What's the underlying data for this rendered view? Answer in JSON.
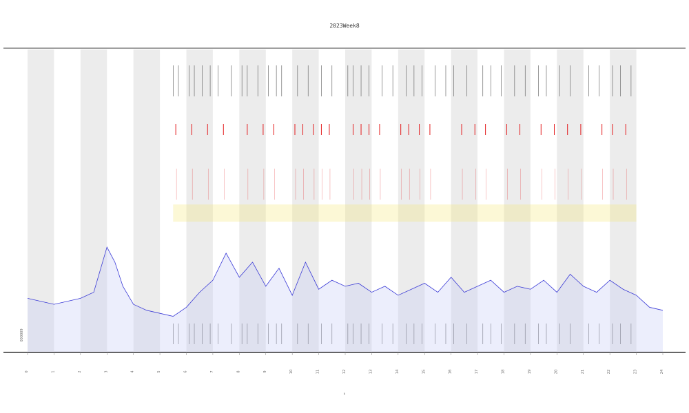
{
  "chart_data": {
    "type": "line",
    "title": "2023Week8",
    "xlabel": "t",
    "ylabel": "",
    "inner_label": "000009",
    "x_tick_labels": [
      "0",
      "1",
      "2",
      "3",
      "4",
      "5",
      "6",
      "7",
      "8",
      "9",
      "10",
      "11",
      "12",
      "13",
      "14",
      "15",
      "16",
      "17",
      "18",
      "19",
      "20",
      "21",
      "22",
      "23",
      "24"
    ],
    "x_range": [
      0,
      24
    ],
    "y_range": [
      0,
      1
    ],
    "shaded_bands": [
      [
        0,
        1
      ],
      [
        2,
        3
      ],
      [
        4,
        5
      ],
      [
        6,
        7
      ],
      [
        8,
        9
      ],
      [
        10,
        11
      ],
      [
        12,
        13
      ],
      [
        14,
        15
      ],
      [
        16,
        17
      ],
      [
        18,
        19
      ],
      [
        20,
        21
      ],
      [
        22,
        23
      ]
    ],
    "colors": {
      "line": "#3b3bd6",
      "fill_blue": "#c9cdf5",
      "band": "#ececec",
      "tick_black": "#555555",
      "tick_red": "#e31a1c",
      "yellow": "#f2e35a"
    },
    "series": [
      {
        "values_x": [
          0,
          0.5,
          1,
          1.5,
          2,
          2.5,
          3,
          3.3,
          3.6,
          4,
          4.5,
          5,
          5.5,
          6,
          6.5,
          7,
          7.5,
          8,
          8.5,
          9,
          9.5,
          10,
          10.5,
          11,
          11.5,
          12,
          12.5,
          13,
          13.5,
          14,
          14.5,
          15,
          15.5,
          16,
          16.5,
          17,
          17.5,
          18,
          18.5,
          19,
          19.5,
          20,
          20.5,
          21,
          21.5,
          22,
          22.5,
          23,
          23.5,
          24
        ],
        "values_y": [
          0.18,
          0.17,
          0.16,
          0.17,
          0.18,
          0.2,
          0.35,
          0.3,
          0.22,
          0.16,
          0.14,
          0.13,
          0.12,
          0.15,
          0.2,
          0.24,
          0.33,
          0.25,
          0.3,
          0.22,
          0.28,
          0.19,
          0.3,
          0.21,
          0.24,
          0.22,
          0.23,
          0.2,
          0.22,
          0.19,
          0.21,
          0.23,
          0.2,
          0.25,
          0.2,
          0.22,
          0.24,
          0.2,
          0.22,
          0.21,
          0.24,
          0.2,
          0.26,
          0.22,
          0.2,
          0.24,
          0.21,
          0.19,
          0.15,
          0.14
        ]
      }
    ],
    "event_ticks_black": [
      5.5,
      5.7,
      6.1,
      6.3,
      6.6,
      6.9,
      7.2,
      7.7,
      8.1,
      8.3,
      8.7,
      9.1,
      9.4,
      9.6,
      10.2,
      10.6,
      11.1,
      11.5,
      12.1,
      12.3,
      12.6,
      12.9,
      13.4,
      13.8,
      14.3,
      14.6,
      14.9,
      15.4,
      15.8,
      16.1,
      16.6,
      17.2,
      17.5,
      17.9,
      18.4,
      18.8,
      19.3,
      19.6,
      20.1,
      20.5,
      21.2,
      21.6,
      22.1,
      22.4,
      22.8
    ],
    "event_ticks_red": [
      5.6,
      6.2,
      6.8,
      7.4,
      8.3,
      8.9,
      9.3,
      10.1,
      10.4,
      10.8,
      11.1,
      11.4,
      12.3,
      12.6,
      12.9,
      13.3,
      14.1,
      14.4,
      14.8,
      15.2,
      16.4,
      16.9,
      17.3,
      18.1,
      18.6,
      19.4,
      19.9,
      20.4,
      20.9,
      21.7,
      22.1,
      22.6
    ]
  }
}
